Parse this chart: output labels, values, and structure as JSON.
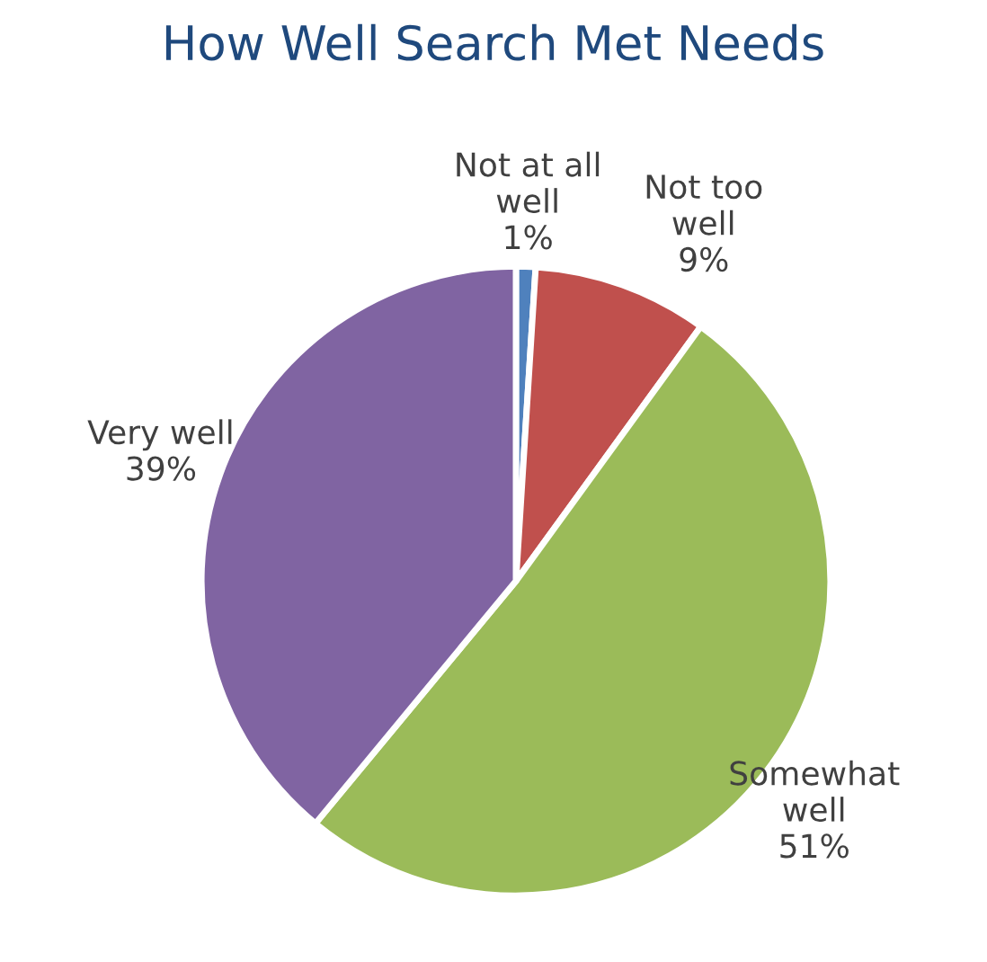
{
  "chart_data": {
    "type": "pie",
    "title": "How Well Search Met Needs",
    "categories": [
      "Not at all\nwell",
      "Not too\nwell",
      "Somewhat\nwell",
      "Very well"
    ],
    "values": [
      1,
      9,
      51,
      39
    ],
    "value_labels": [
      "1%",
      "9%",
      "51%",
      "39%"
    ],
    "colors": [
      "#4f81bd",
      "#c0504d",
      "#9bbb59",
      "#8064a2"
    ],
    "legend": false
  }
}
